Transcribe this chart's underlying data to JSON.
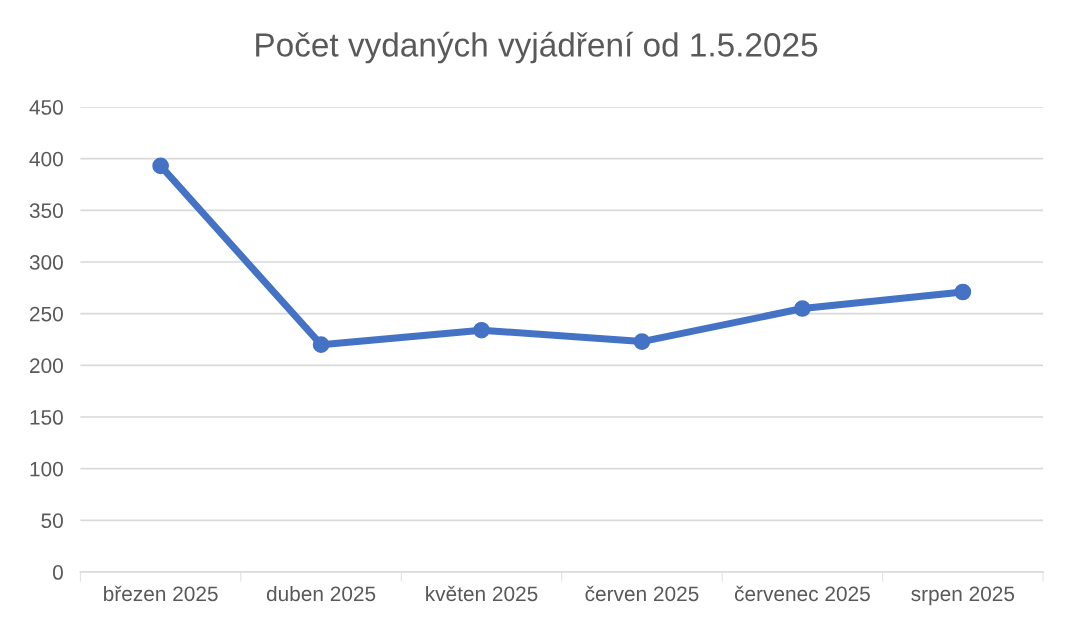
{
  "chart_data": {
    "type": "line",
    "title": "Počet vydaných vyjádření od 1.5.2025",
    "categories": [
      "březen 2025",
      "duben 2025",
      "květen 2025",
      "červen 2025",
      "červenec 2025",
      "srpen 2025"
    ],
    "series": [
      {
        "color": "#4472c4",
        "values": [
          393,
          220,
          234,
          223,
          255,
          271
        ]
      }
    ],
    "ylim": [
      0,
      450
    ],
    "yticks": [
      0,
      50,
      100,
      150,
      200,
      250,
      300,
      350,
      400,
      450
    ],
    "grid": "y",
    "marker": "circle",
    "line_style": "solid",
    "legend": false
  }
}
